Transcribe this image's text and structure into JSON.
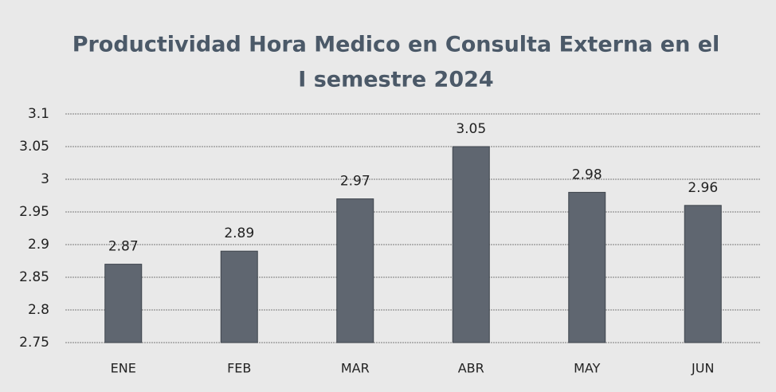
{
  "chart_data": {
    "type": "bar",
    "title": [
      "Productividad Hora Medico en Consulta Externa en el",
      "I semestre 2024"
    ],
    "categories": [
      "ENE",
      "FEB",
      "MAR",
      "ABR",
      "MAY",
      "JUN"
    ],
    "values": [
      2.87,
      2.89,
      2.97,
      3.05,
      2.98,
      2.96
    ],
    "color": "#5f6670",
    "ylim": [
      2.75,
      3.1
    ],
    "yticks": [
      2.75,
      2.8,
      2.85,
      2.9,
      2.95,
      3,
      3.05,
      3.1
    ],
    "grid": true
  }
}
